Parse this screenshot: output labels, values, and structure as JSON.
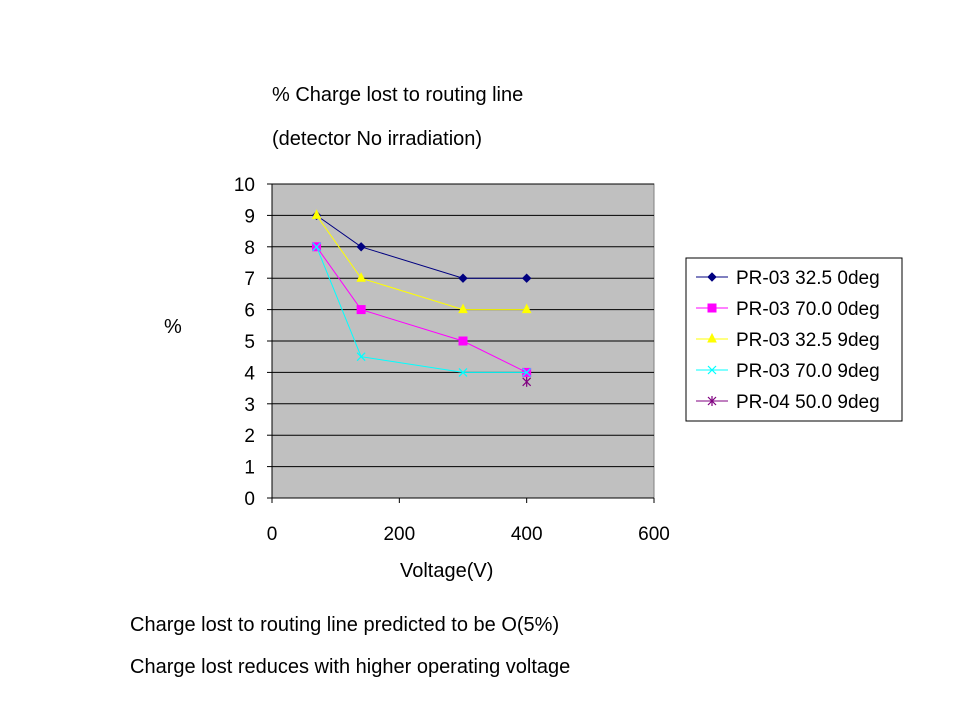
{
  "title_line1": "% Charge lost to routing line",
  "title_line2": "(detector No irradiation)",
  "notes": [
    "Charge lost to routing line predicted to be O(5%)",
    "Charge lost reduces with higher operating voltage"
  ],
  "chart_data": {
    "type": "line",
    "title": "% Charge lost to routing line (detector No irradiation)",
    "xlabel": "Voltage(V)",
    "ylabel": "%",
    "xlim": [
      0,
      600
    ],
    "ylim": [
      0,
      10
    ],
    "xticks": [
      0,
      200,
      400,
      600
    ],
    "yticks": [
      0,
      1,
      2,
      3,
      4,
      5,
      6,
      7,
      8,
      9,
      10
    ],
    "grid": "horizontal",
    "plot_background": "#c0c0c0",
    "legend_position": "right",
    "series": [
      {
        "name": "PR-03 32.5 0deg",
        "color": "#000080",
        "marker": "diamond",
        "points": [
          [
            70,
            9
          ],
          [
            140,
            8
          ],
          [
            300,
            7
          ],
          [
            400,
            7
          ]
        ]
      },
      {
        "name": "PR-03 70.0 0deg",
        "color": "#ff00ff",
        "marker": "square",
        "points": [
          [
            70,
            8
          ],
          [
            140,
            6
          ],
          [
            300,
            5
          ],
          [
            400,
            4
          ]
        ]
      },
      {
        "name": "PR-03 32.5 9deg",
        "color": "#ffff00",
        "marker": "triangle",
        "points": [
          [
            70,
            9
          ],
          [
            140,
            7
          ],
          [
            300,
            6
          ],
          [
            400,
            6
          ]
        ]
      },
      {
        "name": "PR-03 70.0 9deg",
        "color": "#00ffff",
        "marker": "x",
        "points": [
          [
            70,
            8
          ],
          [
            140,
            4.5
          ],
          [
            300,
            4
          ],
          [
            400,
            4
          ]
        ]
      },
      {
        "name": "PR-04 50.0 9deg",
        "color": "#800080",
        "marker": "star",
        "points": [
          [
            400,
            3.7
          ]
        ]
      }
    ]
  }
}
